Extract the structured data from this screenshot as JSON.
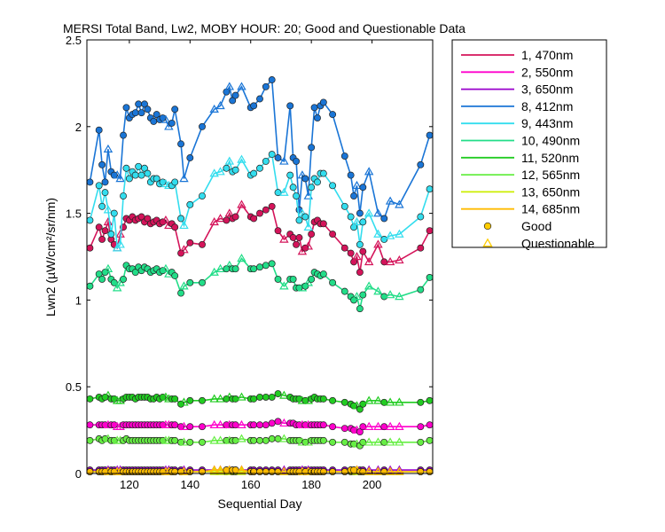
{
  "chart_data": {
    "type": "line",
    "title": "MERSI Total Band, Lw2, MOBY HOUR: 20;  Good and Questionable Data",
    "xlabel": "Sequential Day",
    "ylabel": "Lwn2 (µW/cm²/sr/nm)",
    "xlim": [
      106,
      220
    ],
    "ylim": [
      0,
      2.5
    ],
    "xticks": [
      120,
      140,
      160,
      180,
      200
    ],
    "yticks": [
      0,
      0.5,
      1,
      1.5,
      2,
      2.5
    ],
    "ytick_labels": [
      "0",
      "0.5",
      "1",
      "1.5",
      "2",
      "2.5"
    ],
    "x": [
      107,
      110,
      111,
      112,
      113,
      114,
      115,
      116,
      117,
      118,
      119,
      120,
      121,
      122,
      123,
      124,
      125,
      126,
      127,
      128,
      129,
      130,
      131,
      132,
      133,
      134,
      135,
      137,
      138,
      140,
      144,
      148,
      150,
      152,
      153,
      154,
      155,
      157,
      160,
      161,
      163,
      165,
      167,
      169,
      171,
      173,
      174,
      175,
      176,
      177,
      178,
      179,
      180,
      181,
      182,
      183,
      184,
      187,
      191,
      193,
      194,
      195,
      196,
      197,
      199,
      202,
      204,
      206,
      209,
      216,
      219
    ],
    "quality": [
      "G",
      "G",
      "G",
      "G",
      "Q",
      "G",
      "G",
      "Q",
      "Q",
      "G",
      "G",
      "G",
      "G",
      "G",
      "G",
      "G",
      "G",
      "G",
      "G",
      "G",
      "G",
      "G",
      "G",
      "Q",
      "Q",
      "G",
      "G",
      "G",
      "Q",
      "G",
      "G",
      "Q",
      "Q",
      "G",
      "Q",
      "G",
      "G",
      "Q",
      "G",
      "G",
      "G",
      "G",
      "G",
      "G",
      "Q",
      "G",
      "G",
      "G",
      "G",
      "Q",
      "G",
      "Q",
      "G",
      "G",
      "G",
      "G",
      "G",
      "G",
      "G",
      "G",
      "G",
      "Q",
      "G",
      "G",
      "Q",
      "Q",
      "G",
      "Q",
      "Q",
      "G",
      "G"
    ],
    "series": [
      {
        "name": "1, 470nm",
        "color": "#d4145a",
        "values": [
          1.3,
          1.42,
          1.35,
          1.4,
          1.45,
          1.35,
          1.32,
          1.3,
          1.38,
          1.42,
          1.47,
          1.46,
          1.48,
          1.46,
          1.47,
          1.48,
          1.45,
          1.47,
          1.44,
          1.45,
          1.46,
          1.44,
          1.45,
          1.46,
          1.43,
          1.44,
          1.42,
          1.27,
          1.29,
          1.33,
          1.32,
          1.45,
          1.47,
          1.46,
          1.5,
          1.47,
          1.48,
          1.55,
          1.48,
          1.47,
          1.5,
          1.52,
          1.54,
          1.4,
          1.35,
          1.38,
          1.36,
          1.32,
          1.36,
          1.28,
          1.3,
          1.31,
          1.38,
          1.45,
          1.46,
          1.44,
          1.44,
          1.38,
          1.3,
          1.27,
          1.22,
          1.25,
          1.16,
          1.28,
          1.22,
          1.32,
          1.22,
          1.22,
          1.23,
          1.3,
          1.4
        ]
      },
      {
        "name": "2, 550nm",
        "color": "#ff00cc",
        "values": [
          0.28,
          0.28,
          0.28,
          0.28,
          0.28,
          0.28,
          0.28,
          0.27,
          0.27,
          0.28,
          0.28,
          0.28,
          0.28,
          0.28,
          0.28,
          0.28,
          0.28,
          0.28,
          0.28,
          0.28,
          0.28,
          0.28,
          0.28,
          0.28,
          0.28,
          0.28,
          0.28,
          0.27,
          0.27,
          0.27,
          0.27,
          0.28,
          0.28,
          0.28,
          0.28,
          0.28,
          0.28,
          0.28,
          0.28,
          0.28,
          0.28,
          0.28,
          0.29,
          0.3,
          0.29,
          0.29,
          0.29,
          0.28,
          0.28,
          0.28,
          0.28,
          0.28,
          0.28,
          0.28,
          0.28,
          0.28,
          0.28,
          0.27,
          0.26,
          0.26,
          0.25,
          0.25,
          0.24,
          0.27,
          0.27,
          0.27,
          0.27,
          0.27,
          0.27,
          0.27,
          0.28
        ]
      },
      {
        "name": "3, 650nm",
        "color": "#9900cc",
        "values": [
          0.02,
          0.02,
          0.02,
          0.02,
          0.02,
          0.02,
          0.02,
          0.02,
          0.02,
          0.02,
          0.02,
          0.02,
          0.02,
          0.02,
          0.02,
          0.02,
          0.02,
          0.02,
          0.02,
          0.02,
          0.02,
          0.02,
          0.02,
          0.02,
          0.02,
          0.02,
          0.02,
          0.02,
          0.02,
          0.02,
          0.02,
          0.02,
          0.02,
          0.02,
          0.02,
          0.02,
          0.02,
          0.02,
          0.02,
          0.02,
          0.02,
          0.02,
          0.02,
          0.02,
          0.02,
          0.02,
          0.02,
          0.02,
          0.02,
          0.02,
          0.02,
          0.02,
          0.02,
          0.02,
          0.02,
          0.02,
          0.02,
          0.02,
          0.02,
          0.02,
          0.02,
          0.02,
          0.02,
          0.02,
          0.02,
          0.02,
          0.02,
          0.02,
          0.02,
          0.02,
          0.02
        ]
      },
      {
        "name": "8, 412nm",
        "color": "#1a75d6",
        "values": [
          1.68,
          1.98,
          1.78,
          1.68,
          1.87,
          1.74,
          1.72,
          1.72,
          1.7,
          1.95,
          2.11,
          2.05,
          2.07,
          2.08,
          2.13,
          2.08,
          2.13,
          2.1,
          2.05,
          2.03,
          2.07,
          2.04,
          2.05,
          2.04,
          2.0,
          2.02,
          2.1,
          1.9,
          1.7,
          1.82,
          2.0,
          2.1,
          2.12,
          2.2,
          2.23,
          2.15,
          2.18,
          2.23,
          2.11,
          2.12,
          2.16,
          2.23,
          2.27,
          1.82,
          1.8,
          2.12,
          1.82,
          1.8,
          1.52,
          1.72,
          1.7,
          1.6,
          1.88,
          2.11,
          2.05,
          2.12,
          2.14,
          2.07,
          1.83,
          1.72,
          1.6,
          1.66,
          1.5,
          1.65,
          1.74,
          1.5,
          1.47,
          1.57,
          1.55,
          1.78,
          1.95
        ]
      },
      {
        "name": "9, 443nm",
        "color": "#33ddee",
        "values": [
          1.46,
          1.66,
          1.54,
          1.62,
          1.52,
          1.38,
          1.5,
          1.3,
          1.32,
          1.6,
          1.76,
          1.7,
          1.74,
          1.72,
          1.77,
          1.72,
          1.76,
          1.73,
          1.68,
          1.7,
          1.7,
          1.67,
          1.68,
          1.67,
          1.66,
          1.66,
          1.68,
          1.47,
          1.43,
          1.55,
          1.6,
          1.73,
          1.74,
          1.76,
          1.8,
          1.74,
          1.75,
          1.81,
          1.72,
          1.73,
          1.76,
          1.8,
          1.84,
          1.62,
          1.62,
          1.72,
          1.65,
          1.6,
          1.46,
          1.5,
          1.48,
          1.42,
          1.65,
          1.7,
          1.68,
          1.73,
          1.73,
          1.66,
          1.54,
          1.48,
          1.42,
          1.45,
          1.32,
          1.45,
          1.5,
          1.38,
          1.35,
          1.37,
          1.38,
          1.48,
          1.64
        ]
      },
      {
        "name": "10, 490nm",
        "color": "#22dd88",
        "values": [
          1.08,
          1.15,
          1.12,
          1.16,
          1.18,
          1.12,
          1.1,
          1.07,
          1.1,
          1.12,
          1.2,
          1.18,
          1.18,
          1.16,
          1.19,
          1.17,
          1.19,
          1.18,
          1.16,
          1.17,
          1.18,
          1.16,
          1.17,
          1.18,
          1.15,
          1.16,
          1.14,
          1.04,
          1.08,
          1.1,
          1.1,
          1.16,
          1.18,
          1.18,
          1.2,
          1.18,
          1.18,
          1.24,
          1.18,
          1.18,
          1.19,
          1.2,
          1.21,
          1.12,
          1.08,
          1.12,
          1.12,
          1.07,
          1.07,
          1.07,
          1.08,
          1.1,
          1.12,
          1.16,
          1.15,
          1.14,
          1.15,
          1.1,
          1.05,
          1.02,
          1.0,
          1.02,
          0.95,
          1.03,
          1.08,
          1.05,
          1.02,
          1.03,
          1.02,
          1.06,
          1.13
        ]
      },
      {
        "name": "11, 520nm",
        "color": "#22cc22",
        "values": [
          0.43,
          0.44,
          0.43,
          0.44,
          0.45,
          0.43,
          0.43,
          0.42,
          0.42,
          0.43,
          0.44,
          0.44,
          0.44,
          0.43,
          0.44,
          0.44,
          0.44,
          0.44,
          0.43,
          0.43,
          0.44,
          0.43,
          0.44,
          0.44,
          0.43,
          0.43,
          0.43,
          0.4,
          0.41,
          0.42,
          0.42,
          0.43,
          0.43,
          0.43,
          0.44,
          0.43,
          0.43,
          0.44,
          0.43,
          0.43,
          0.44,
          0.44,
          0.44,
          0.46,
          0.45,
          0.44,
          0.43,
          0.43,
          0.43,
          0.42,
          0.42,
          0.42,
          0.43,
          0.44,
          0.43,
          0.43,
          0.43,
          0.42,
          0.41,
          0.4,
          0.39,
          0.39,
          0.37,
          0.4,
          0.42,
          0.42,
          0.41,
          0.41,
          0.41,
          0.41,
          0.42
        ]
      },
      {
        "name": "12, 565nm",
        "color": "#66ee44",
        "values": [
          0.19,
          0.2,
          0.19,
          0.2,
          0.2,
          0.19,
          0.19,
          0.19,
          0.19,
          0.19,
          0.2,
          0.19,
          0.19,
          0.19,
          0.19,
          0.19,
          0.19,
          0.19,
          0.19,
          0.19,
          0.19,
          0.19,
          0.19,
          0.19,
          0.19,
          0.19,
          0.19,
          0.18,
          0.18,
          0.18,
          0.18,
          0.19,
          0.19,
          0.19,
          0.19,
          0.19,
          0.19,
          0.2,
          0.19,
          0.19,
          0.19,
          0.19,
          0.2,
          0.2,
          0.2,
          0.19,
          0.19,
          0.19,
          0.19,
          0.18,
          0.18,
          0.18,
          0.19,
          0.19,
          0.19,
          0.19,
          0.19,
          0.18,
          0.18,
          0.17,
          0.17,
          0.17,
          0.16,
          0.18,
          0.18,
          0.18,
          0.18,
          0.18,
          0.18,
          0.18,
          0.19
        ]
      },
      {
        "name": "13, 650nm",
        "color": "#ccee00",
        "values": [
          0.01,
          0.01,
          0.01,
          0.01,
          0.01,
          0.01,
          0.01,
          0.01,
          0.01,
          0.01,
          0.01,
          0.01,
          0.01,
          0.01,
          0.01,
          0.01,
          0.01,
          0.01,
          0.01,
          0.01,
          0.01,
          0.01,
          0.01,
          0.01,
          0.01,
          0.01,
          0.01,
          0.01,
          0.01,
          0.01,
          0.01,
          0.01,
          0.01,
          0.01,
          0.01,
          0.01,
          0.01,
          0.01,
          0.01,
          0.01,
          0.01,
          0.01,
          0.01,
          0.01,
          0.01,
          0.01,
          0.01,
          0.01,
          0.01,
          0.01,
          0.01,
          0.01,
          0.01,
          0.01,
          0.01,
          0.01,
          0.01,
          0.01,
          0.01,
          0.01,
          0.01,
          0.01,
          0.01,
          0.01,
          0.01,
          0.01,
          0.01,
          0.01,
          0.01,
          0.01,
          0.01
        ]
      },
      {
        "name": "14, 685nm",
        "color": "#ffbb00",
        "values": [
          0.01,
          0.01,
          0.01,
          0.01,
          0.01,
          0.01,
          0.01,
          0.01,
          0.01,
          0.01,
          0.01,
          0.01,
          0.01,
          0.01,
          0.01,
          0.01,
          0.01,
          0.01,
          0.01,
          0.01,
          0.01,
          0.01,
          0.01,
          0.01,
          0.01,
          0.01,
          0.01,
          0.01,
          0.01,
          0.01,
          0.01,
          0.02,
          0.02,
          0.02,
          0.02,
          0.02,
          0.02,
          0.02,
          0.01,
          0.01,
          0.01,
          0.01,
          0.01,
          0.01,
          0.01,
          0.01,
          0.01,
          0.01,
          0.01,
          0.01,
          0.01,
          0.01,
          0.01,
          0.01,
          0.01,
          0.01,
          0.01,
          0.01,
          0.01,
          0.02,
          0.02,
          0.02,
          0.01,
          0.01,
          0.01,
          0.01,
          0.01,
          0.01,
          0.01,
          0.01,
          0.01
        ]
      }
    ],
    "legend": {
      "position": "outside-right",
      "marker_entries": [
        {
          "name": "Good",
          "marker": "circle",
          "color": "#ffcc00"
        },
        {
          "name": "Questionable",
          "marker": "triangle",
          "color": "#ffcc00"
        }
      ]
    }
  }
}
